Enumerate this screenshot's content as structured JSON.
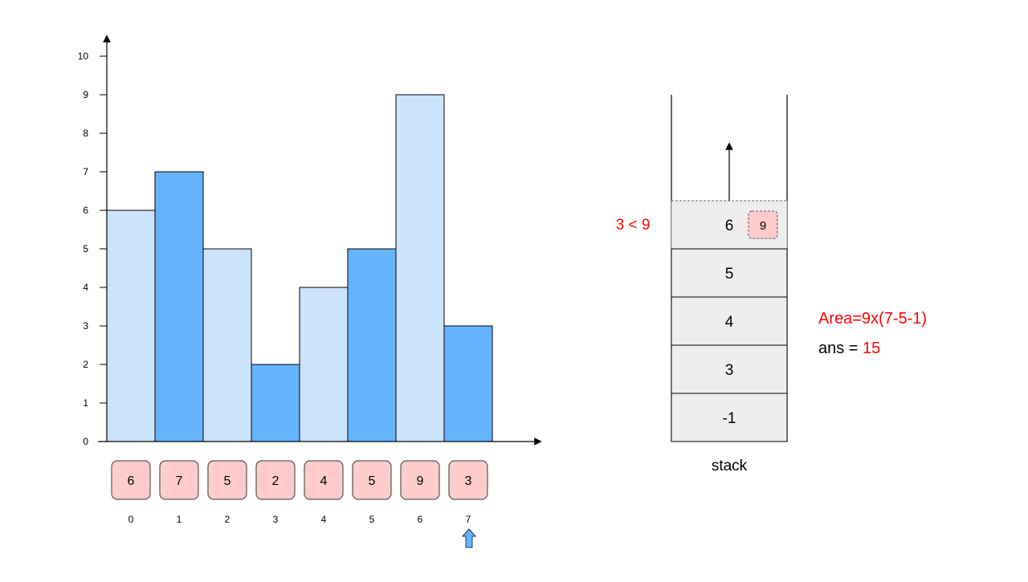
{
  "chart_data": {
    "type": "bar",
    "categories": [
      "0",
      "1",
      "2",
      "3",
      "4",
      "5",
      "6",
      "7"
    ],
    "values": [
      6,
      7,
      5,
      2,
      4,
      5,
      9,
      3
    ],
    "highlighted_indices": [
      1,
      3,
      5,
      7
    ],
    "ylim": [
      0,
      10
    ],
    "yticks": [
      "0",
      "1",
      "2",
      "3",
      "4",
      "5",
      "6",
      "7",
      "8",
      "9",
      "10"
    ],
    "colors": {
      "bar": "#cce4fb",
      "highlight": "#66b2ff",
      "cell": "#ffcccc"
    }
  },
  "array": {
    "values": [
      "6",
      "7",
      "5",
      "2",
      "4",
      "5",
      "9",
      "3"
    ],
    "indices": [
      "0",
      "1",
      "2",
      "3",
      "4",
      "5",
      "6",
      "7"
    ],
    "current_index": 7
  },
  "stack": {
    "label": "stack",
    "items_top_to_bottom": [
      "6",
      "5",
      "4",
      "3",
      "-1"
    ],
    "popping_value_badge": "9",
    "fill": "#eeeeee"
  },
  "annotations": {
    "compare": "3 < 9",
    "area": "Area=9x(7-5-1)",
    "ans_label": "ans = ",
    "ans_value": "15",
    "red": "#ff0000"
  }
}
